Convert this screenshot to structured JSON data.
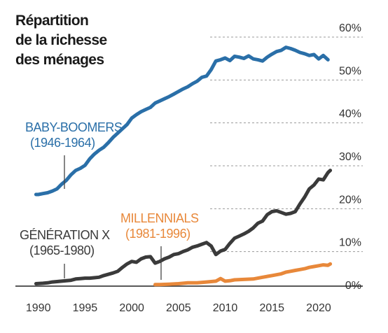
{
  "chart_data": {
    "type": "line",
    "title": [
      "Répartition",
      "de la richesse",
      "des ménages"
    ],
    "xlim": [
      1988,
      2023
    ],
    "ylim": [
      0,
      60
    ],
    "y_ticks": [
      {
        "value": 0,
        "label": "0%"
      },
      {
        "value": 10,
        "label": "10%"
      },
      {
        "value": 20,
        "label": "20%"
      },
      {
        "value": 30,
        "label": "30%"
      },
      {
        "value": 40,
        "label": "40%"
      },
      {
        "value": 50,
        "label": "50%"
      },
      {
        "value": 60,
        "label": "60%"
      }
    ],
    "x_ticks": [
      {
        "value": 1990,
        "label": "1990"
      },
      {
        "value": 1995,
        "label": "1995"
      },
      {
        "value": 2000,
        "label": "2000"
      },
      {
        "value": 2005,
        "label": "2005"
      },
      {
        "value": 2010,
        "label": "2010"
      },
      {
        "value": 2015,
        "label": "2015"
      },
      {
        "value": 2020,
        "label": "2020"
      }
    ],
    "grid": true,
    "series": [
      {
        "name": "BABY-BOOMERS",
        "sublabel": "(1946-1964)",
        "color": "#2a6fa8",
        "points": [
          [
            1989.75,
            21.2
          ],
          [
            1990,
            21.2
          ],
          [
            1990.5,
            21.4
          ],
          [
            1991,
            21.6
          ],
          [
            1991.5,
            22.0
          ],
          [
            1992,
            22.5
          ],
          [
            1992.5,
            23.6
          ],
          [
            1993,
            24.5
          ],
          [
            1993.5,
            25.8
          ],
          [
            1994,
            26.8
          ],
          [
            1994.5,
            27.3
          ],
          [
            1995,
            28.0
          ],
          [
            1995.5,
            29.5
          ],
          [
            1996,
            30.6
          ],
          [
            1996.5,
            31.5
          ],
          [
            1997,
            32.2
          ],
          [
            1997.5,
            33.3
          ],
          [
            1998,
            34.5
          ],
          [
            1998.5,
            35.5
          ],
          [
            1999,
            36.5
          ],
          [
            1999.5,
            37.5
          ],
          [
            2000,
            39.0
          ],
          [
            2000.5,
            39.8
          ],
          [
            2001,
            40.5
          ],
          [
            2001.5,
            41.0
          ],
          [
            2002,
            41.5
          ],
          [
            2002.5,
            42.5
          ],
          [
            2003,
            43.0
          ],
          [
            2003.5,
            43.5
          ],
          [
            2004,
            44.0
          ],
          [
            2004.5,
            44.6
          ],
          [
            2005,
            45.2
          ],
          [
            2005.5,
            45.8
          ],
          [
            2006,
            46.3
          ],
          [
            2006.5,
            47.0
          ],
          [
            2007,
            47.6
          ],
          [
            2007.5,
            48.5
          ],
          [
            2008,
            48.8
          ],
          [
            2008.5,
            50.3
          ],
          [
            2009,
            52.3
          ],
          [
            2009.5,
            52.6
          ],
          [
            2010,
            53.0
          ],
          [
            2010.5,
            52.4
          ],
          [
            2011,
            53.4
          ],
          [
            2011.5,
            53.2
          ],
          [
            2012,
            52.9
          ],
          [
            2012.5,
            53.5
          ],
          [
            2013,
            52.8
          ],
          [
            2013.5,
            52.6
          ],
          [
            2014,
            52.3
          ],
          [
            2014.5,
            53.2
          ],
          [
            2015,
            53.9
          ],
          [
            2015.5,
            54.5
          ],
          [
            2016,
            54.8
          ],
          [
            2016.5,
            55.5
          ],
          [
            2017,
            55.2
          ],
          [
            2017.5,
            54.8
          ],
          [
            2018,
            54.3
          ],
          [
            2018.5,
            54.0
          ],
          [
            2019,
            53.6
          ],
          [
            2019.5,
            53.8
          ],
          [
            2020,
            52.8
          ],
          [
            2020.5,
            53.6
          ],
          [
            2021,
            52.6
          ]
        ]
      },
      {
        "name": "GÉNÉRATION X",
        "sublabel": "(1965-1980)",
        "color": "#3a3a3a",
        "points": [
          [
            1989.75,
            0.4
          ],
          [
            1990.5,
            0.5
          ],
          [
            1991,
            0.6
          ],
          [
            1991.5,
            0.8
          ],
          [
            1992,
            0.9
          ],
          [
            1992.5,
            1.0
          ],
          [
            1993,
            1.1
          ],
          [
            1993.5,
            1.2
          ],
          [
            1994,
            1.5
          ],
          [
            1994.5,
            1.6
          ],
          [
            1995,
            1.7
          ],
          [
            1995.5,
            1.7
          ],
          [
            1996,
            1.8
          ],
          [
            1996.5,
            1.9
          ],
          [
            1997,
            2.3
          ],
          [
            1997.5,
            2.6
          ],
          [
            1998,
            2.9
          ],
          [
            1998.5,
            3.3
          ],
          [
            1999,
            4.2
          ],
          [
            1999.5,
            5.0
          ],
          [
            2000,
            5.6
          ],
          [
            2000.5,
            5.4
          ],
          [
            2001,
            6.2
          ],
          [
            2001.5,
            6.6
          ],
          [
            2002,
            6.7
          ],
          [
            2002.5,
            5.2
          ],
          [
            2003,
            5.6
          ],
          [
            2003.5,
            6.2
          ],
          [
            2004,
            6.6
          ],
          [
            2004.5,
            7.2
          ],
          [
            2005,
            7.4
          ],
          [
            2005.5,
            7.9
          ],
          [
            2006,
            8.3
          ],
          [
            2006.5,
            8.9
          ],
          [
            2007,
            9.2
          ],
          [
            2007.5,
            9.6
          ],
          [
            2008,
            10.0
          ],
          [
            2008.5,
            9.2
          ],
          [
            2009,
            7.2
          ],
          [
            2009.5,
            8.0
          ],
          [
            2010,
            8.4
          ],
          [
            2010.5,
            9.8
          ],
          [
            2011,
            11.0
          ],
          [
            2011.5,
            11.5
          ],
          [
            2012,
            12.0
          ],
          [
            2012.5,
            12.6
          ],
          [
            2013,
            13.4
          ],
          [
            2013.5,
            14.5
          ],
          [
            2014,
            15.0
          ],
          [
            2014.5,
            16.5
          ],
          [
            2015,
            17.2
          ],
          [
            2015.5,
            17.4
          ],
          [
            2016,
            17.0
          ],
          [
            2016.5,
            16.6
          ],
          [
            2017,
            16.8
          ],
          [
            2017.5,
            17.2
          ],
          [
            2018,
            19.0
          ],
          [
            2018.5,
            20.6
          ],
          [
            2019,
            22.5
          ],
          [
            2019.5,
            23.4
          ],
          [
            2020,
            24.8
          ],
          [
            2020.5,
            24.6
          ],
          [
            2021,
            26.3
          ],
          [
            2021.25,
            26.8
          ]
        ]
      },
      {
        "name": "MILLENNIALS",
        "sublabel": "(1981-1996)",
        "color": "#e8883a",
        "points": [
          [
            2002.5,
            0.2
          ],
          [
            2003,
            0.2
          ],
          [
            2004,
            0.3
          ],
          [
            2005,
            0.4
          ],
          [
            2006,
            0.6
          ],
          [
            2007,
            0.6
          ],
          [
            2008,
            0.8
          ],
          [
            2008.5,
            0.9
          ],
          [
            2009,
            1.0
          ],
          [
            2009.5,
            1.6
          ],
          [
            2010,
            1.0
          ],
          [
            2010.5,
            1.1
          ],
          [
            2011,
            1.3
          ],
          [
            2012,
            1.4
          ],
          [
            2013,
            1.5
          ],
          [
            2014,
            1.9
          ],
          [
            2015,
            2.3
          ],
          [
            2016,
            2.7
          ],
          [
            2016.5,
            3.1
          ],
          [
            2017,
            3.3
          ],
          [
            2017.5,
            3.5
          ],
          [
            2018,
            3.7
          ],
          [
            2018.5,
            3.9
          ],
          [
            2019,
            4.2
          ],
          [
            2019.5,
            4.4
          ],
          [
            2020,
            4.6
          ],
          [
            2020.5,
            4.8
          ],
          [
            2021,
            4.7
          ],
          [
            2021.25,
            5.0
          ]
        ]
      }
    ]
  }
}
